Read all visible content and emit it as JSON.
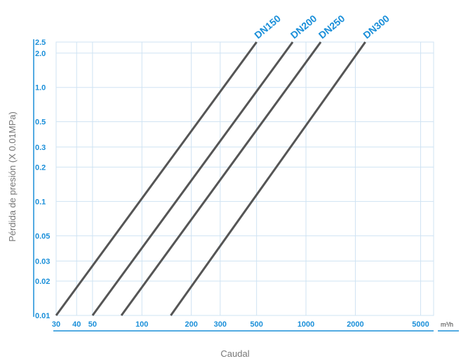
{
  "chart_data": {
    "type": "line",
    "xlabel": "Caudal",
    "ylabel": "Pérdida de presión (X 0.01MPa)",
    "x_unit": "m³/h",
    "x_scale": "log",
    "y_scale": "log",
    "xlim": [
      30,
      6000
    ],
    "ylim": [
      0.01,
      2.5
    ],
    "x_ticks": [
      30,
      40,
      50,
      100,
      200,
      300,
      500,
      1000,
      2000,
      5000
    ],
    "x_tick_labels": [
      "30",
      "40",
      "50",
      "100",
      "200",
      "300",
      "500",
      "1000",
      "2000",
      "5000"
    ],
    "y_ticks": [
      0.01,
      0.02,
      0.03,
      0.05,
      0.1,
      0.2,
      0.3,
      0.5,
      1.0,
      2.0,
      2.5
    ],
    "y_tick_labels": [
      "0.01",
      "0.02",
      "0.03",
      "0.05",
      "0.1",
      "0.2",
      "0.3",
      "0.5",
      "1.0",
      "2.0",
      "2.5"
    ],
    "grid": true,
    "series": [
      {
        "name": "DN150",
        "x": [
          30,
          500
        ],
        "y": [
          0.01,
          2.5
        ]
      },
      {
        "name": "DN200",
        "x": [
          50,
          830
        ],
        "y": [
          0.01,
          2.5
        ]
      },
      {
        "name": "DN250",
        "x": [
          75,
          1230
        ],
        "y": [
          0.01,
          2.5
        ]
      },
      {
        "name": "DN300",
        "x": [
          150,
          2300
        ],
        "y": [
          0.01,
          2.5
        ]
      }
    ],
    "colors": {
      "line": "#555555",
      "accent": "#1a8fd9",
      "grid": "#cfe3f3"
    }
  }
}
